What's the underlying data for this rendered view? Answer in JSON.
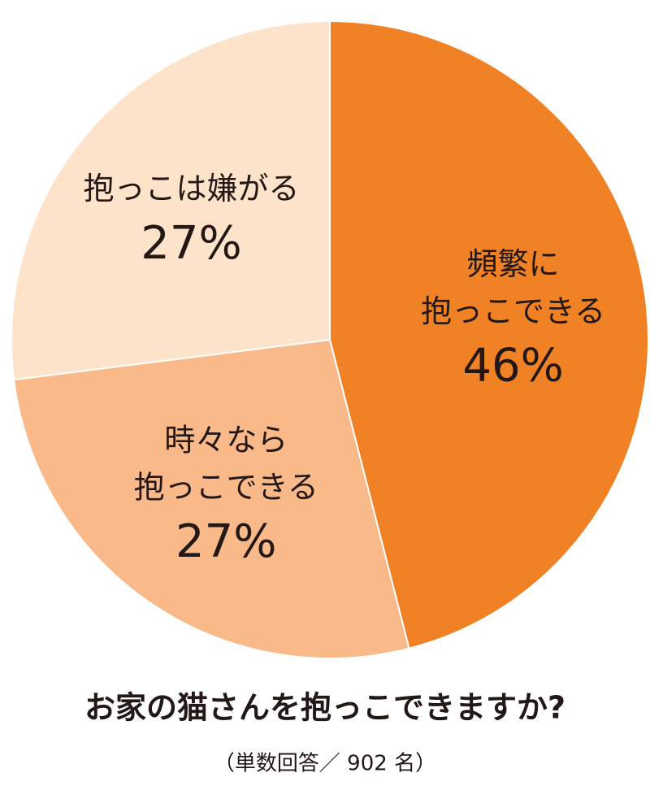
{
  "chart_data": {
    "type": "pie",
    "title": "お家の猫さんを抱っこできますか?",
    "subtitle": "（単数回答／ 902 名）",
    "categories": [
      [
        "頻繁に",
        "抱っこできる"
      ],
      [
        "時々なら",
        "抱っこできる"
      ],
      [
        "抱っこは嫌がる"
      ]
    ],
    "values": [
      46,
      27,
      27
    ],
    "value_labels": [
      "46%",
      "27%",
      "27%"
    ],
    "colors": [
      "#f08125",
      "#f9b988",
      "#fde3ca"
    ]
  }
}
